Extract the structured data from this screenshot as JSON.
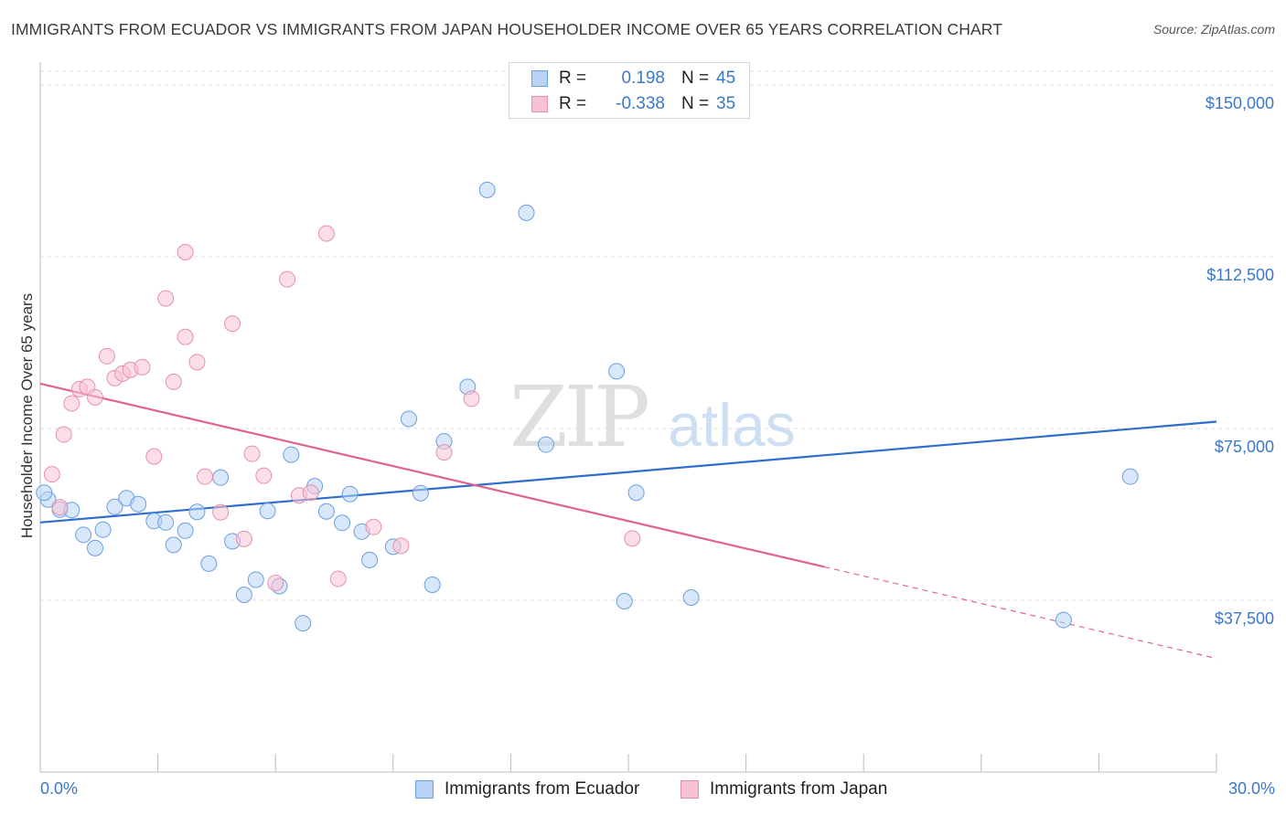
{
  "title": "IMMIGRANTS FROM ECUADOR VS IMMIGRANTS FROM JAPAN HOUSEHOLDER INCOME OVER 65 YEARS CORRELATION CHART",
  "source": "Source: ZipAtlas.com",
  "watermark": {
    "zip": "ZIP",
    "atlas": "atlas"
  },
  "legend": {
    "ecuador": {
      "r_label": "R =",
      "r_value": "0.198",
      "n_label": "N =",
      "n_value": "45"
    },
    "japan": {
      "r_label": "R =",
      "r_value": "-0.338",
      "n_label": "N =",
      "n_value": "35"
    }
  },
  "colors": {
    "ecuador_fill": "#b8d4f5",
    "ecuador_stroke": "#6b9fe0",
    "ecuador_line": "#2f6fcb",
    "japan_fill": "#f7c3d3",
    "japan_stroke": "#e890ab",
    "japan_line": "#e06292",
    "axis_label": "#3a78c9",
    "grid": "#dddddd"
  },
  "chart_data": {
    "type": "scatter",
    "title": "IMMIGRANTS FROM ECUADOR VS IMMIGRANTS FROM JAPAN HOUSEHOLDER INCOME OVER 65 YEARS CORRELATION CHART",
    "xlabel": "",
    "ylabel": "Householder Income Over 65 years",
    "xlim": [
      0,
      30
    ],
    "ylim": [
      0,
      153000
    ],
    "x_tick_labels": [
      "0.0%",
      "30.0%"
    ],
    "y_ticks": [
      37500,
      75000,
      112500,
      150000
    ],
    "y_tick_labels": [
      "$37,500",
      "$75,000",
      "$112,500",
      "$150,000"
    ],
    "grid": true,
    "legend_position": "bottom",
    "series": [
      {
        "name": "Immigrants from Ecuador",
        "points": [
          [
            0.2,
            59500
          ],
          [
            0.5,
            57300
          ],
          [
            0.8,
            57200
          ],
          [
            1.1,
            51800
          ],
          [
            1.4,
            48900
          ],
          [
            1.6,
            52900
          ],
          [
            1.9,
            57900
          ],
          [
            2.2,
            59800
          ],
          [
            2.5,
            58500
          ],
          [
            2.9,
            54800
          ],
          [
            3.2,
            54500
          ],
          [
            3.4,
            49600
          ],
          [
            3.7,
            52700
          ],
          [
            4.0,
            56800
          ],
          [
            4.3,
            45500
          ],
          [
            4.6,
            64300
          ],
          [
            4.9,
            50400
          ],
          [
            5.2,
            38700
          ],
          [
            5.5,
            42000
          ],
          [
            5.8,
            57000
          ],
          [
            6.1,
            40600
          ],
          [
            6.4,
            69300
          ],
          [
            6.7,
            32500
          ],
          [
            7.0,
            62400
          ],
          [
            7.3,
            56900
          ],
          [
            7.7,
            54400
          ],
          [
            7.9,
            60700
          ],
          [
            8.2,
            52500
          ],
          [
            8.4,
            46300
          ],
          [
            9.0,
            49200
          ],
          [
            9.4,
            77100
          ],
          [
            9.7,
            60900
          ],
          [
            10.0,
            40900
          ],
          [
            10.3,
            72200
          ],
          [
            10.9,
            84100
          ],
          [
            11.4,
            127100
          ],
          [
            12.4,
            122100
          ],
          [
            12.9,
            71500
          ],
          [
            14.7,
            87500
          ],
          [
            14.9,
            37300
          ],
          [
            15.2,
            61000
          ],
          [
            16.6,
            38100
          ],
          [
            26.1,
            33200
          ],
          [
            27.8,
            64500
          ],
          [
            0.1,
            61000
          ]
        ]
      },
      {
        "name": "Immigrants from Japan",
        "points": [
          [
            0.3,
            65000
          ],
          [
            0.5,
            57800
          ],
          [
            0.6,
            73700
          ],
          [
            0.8,
            80500
          ],
          [
            1.0,
            83600
          ],
          [
            1.2,
            84100
          ],
          [
            1.4,
            81800
          ],
          [
            1.7,
            90800
          ],
          [
            1.9,
            86000
          ],
          [
            2.1,
            87000
          ],
          [
            2.3,
            87800
          ],
          [
            2.6,
            88400
          ],
          [
            2.9,
            68900
          ],
          [
            3.2,
            103400
          ],
          [
            3.4,
            85200
          ],
          [
            3.7,
            95000
          ],
          [
            4.0,
            89500
          ],
          [
            4.2,
            64500
          ],
          [
            4.6,
            56700
          ],
          [
            4.9,
            97900
          ],
          [
            5.2,
            50900
          ],
          [
            5.4,
            69500
          ],
          [
            5.7,
            64700
          ],
          [
            6.0,
            41300
          ],
          [
            6.3,
            107600
          ],
          [
            6.6,
            60400
          ],
          [
            6.9,
            61000
          ],
          [
            7.3,
            117600
          ],
          [
            3.7,
            113500
          ],
          [
            7.6,
            42200
          ],
          [
            8.5,
            53500
          ],
          [
            9.2,
            49400
          ],
          [
            10.3,
            69800
          ],
          [
            11.0,
            81500
          ],
          [
            15.1,
            51000
          ]
        ]
      }
    ],
    "trend_lines": [
      {
        "series": "Immigrants from Ecuador",
        "from": [
          0,
          54500
        ],
        "to": [
          30,
          76500
        ]
      },
      {
        "series": "Immigrants from Japan",
        "from": [
          0,
          84800
        ],
        "to": [
          20,
          44800
        ],
        "dashed_to": [
          30,
          24800
        ]
      }
    ]
  },
  "bottom_legend": {
    "ecuador": "Immigrants from Ecuador",
    "japan": "Immigrants from Japan"
  }
}
